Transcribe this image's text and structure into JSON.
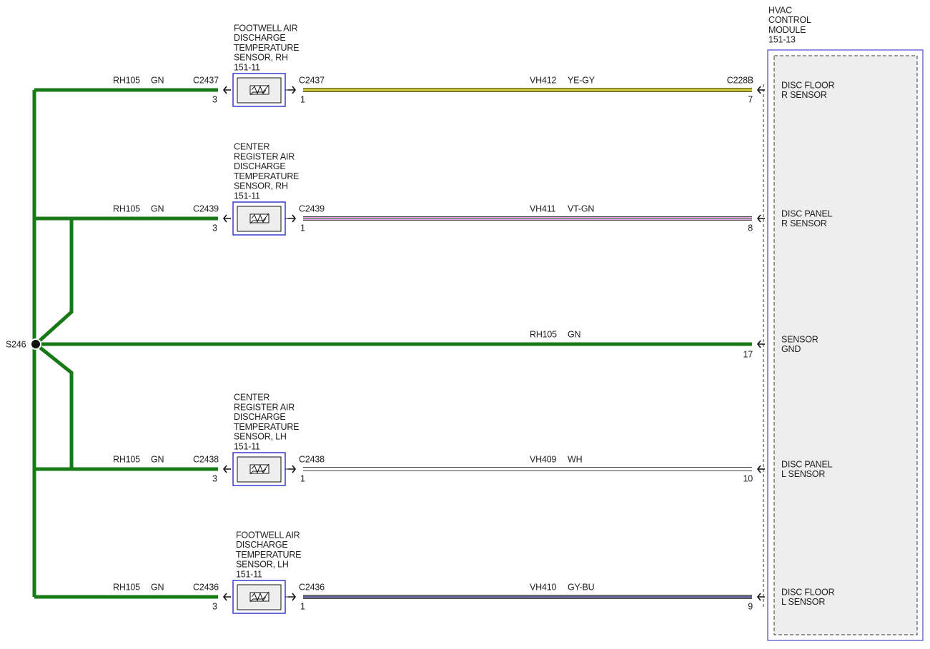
{
  "splice": "S246",
  "module": {
    "label": [
      "HVAC",
      "CONTROL",
      "MODULE",
      "151-13"
    ],
    "connector": "C228B"
  },
  "rows": [
    {
      "sensor": [
        "FOOTWELL AIR",
        "DISCHARGE",
        "TEMPERATURE",
        "SENSOR, RH",
        "151-11"
      ],
      "ground_circuit": "RH105",
      "ground_color": "GN",
      "ground_connector": "C2437",
      "ground_pin": "3",
      "signal_connector": "C2437",
      "signal_pin": "1",
      "circuit": "VH412",
      "wire_color": "YE-GY",
      "module_pin": "7",
      "function": [
        "DISC FLOOR",
        "R SENSOR"
      ]
    },
    {
      "sensor": [
        "CENTER",
        "REGISTER AIR",
        "DISCHARGE",
        "TEMPERATURE",
        "SENSOR, RH",
        "151-11"
      ],
      "ground_circuit": "RH105",
      "ground_color": "GN",
      "ground_connector": "C2439",
      "ground_pin": "3",
      "signal_connector": "C2439",
      "signal_pin": "1",
      "circuit": "VH411",
      "wire_color": "VT-GN",
      "module_pin": "8",
      "function": [
        "DISC PANEL",
        "R SENSOR"
      ]
    },
    {
      "sensor": [
        "CENTER",
        "REGISTER AIR",
        "DISCHARGE",
        "TEMPERATURE",
        "SENSOR, LH",
        "151-11"
      ],
      "ground_circuit": "RH105",
      "ground_color": "GN",
      "ground_connector": "C2438",
      "ground_pin": "3",
      "signal_connector": "C2438",
      "signal_pin": "1",
      "circuit": "VH409",
      "wire_color": "WH",
      "module_pin": "10",
      "function": [
        "DISC PANEL",
        "L SENSOR"
      ]
    },
    {
      "sensor": [
        "FOOTWELL AIR",
        "DISCHARGE",
        "TEMPERATURE",
        "SENSOR, LH",
        "151-11"
      ],
      "ground_circuit": "RH105",
      "ground_color": "GN",
      "ground_connector": "C2436",
      "ground_pin": "3",
      "signal_connector": "C2436",
      "signal_pin": "1",
      "circuit": "VH410",
      "wire_color": "GY-BU",
      "module_pin": "9",
      "function": [
        "DISC FLOOR",
        "L SENSOR"
      ]
    }
  ],
  "direct": {
    "circuit": "RH105",
    "wire_color": "GN",
    "module_pin": "17",
    "function": [
      "SENSOR",
      "GND"
    ]
  }
}
